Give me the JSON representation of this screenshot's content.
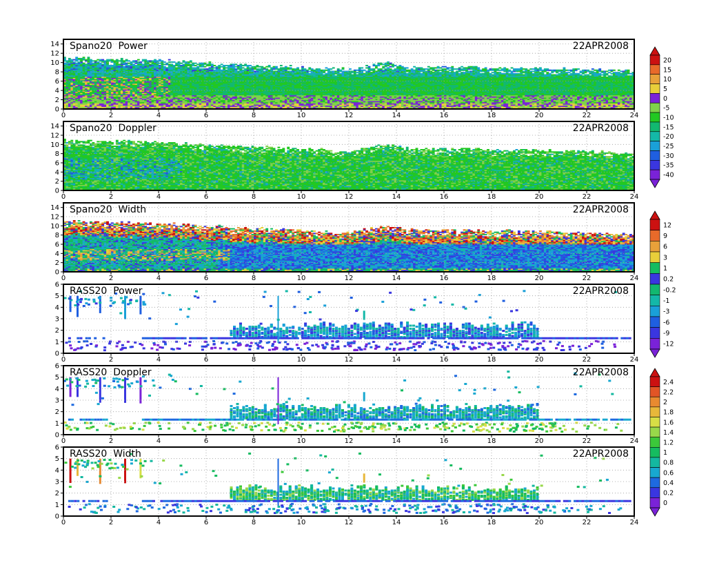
{
  "date_label": "22APR2008",
  "chart_data": [
    {
      "type": "heatmap",
      "title": "Spano20  Power",
      "date": "22APR2008",
      "xlim": [
        0,
        24
      ],
      "ylim": [
        0,
        15
      ],
      "x_ticks": [
        "0",
        "2",
        "4",
        "6",
        "8",
        "10",
        "12",
        "14",
        "16",
        "18",
        "20",
        "22",
        "24"
      ],
      "y_ticks": [
        "0",
        "2",
        "4",
        "6",
        "8",
        "10",
        "12",
        "14"
      ],
      "grid": true,
      "colorbar": {
        "levels": [
          "20",
          "15",
          "10",
          "5",
          "0",
          "-5",
          "-10",
          "-15",
          "-20",
          "-25",
          "-30",
          "-35",
          "-40"
        ]
      },
      "data_top_km_by_hour": [
        [
          0,
          11
        ],
        [
          4,
          10.5
        ],
        [
          8,
          9.5
        ],
        [
          12,
          8.6
        ],
        [
          13.6,
          10
        ],
        [
          14.5,
          9.2
        ],
        [
          20,
          8.8
        ],
        [
          24,
          8.2
        ]
      ]
    },
    {
      "type": "heatmap",
      "title": "Spano20  Doppler",
      "date": "22APR2008",
      "xlim": [
        0,
        24
      ],
      "ylim": [
        0,
        15
      ],
      "x_ticks": [
        "0",
        "2",
        "4",
        "6",
        "8",
        "10",
        "12",
        "14",
        "16",
        "18",
        "20",
        "22",
        "24"
      ],
      "y_ticks": [
        "0",
        "2",
        "4",
        "6",
        "8",
        "10",
        "12",
        "14"
      ],
      "grid": true,
      "colorbar": {
        "levels": [
          "20",
          "15",
          "10",
          "5",
          "0",
          "-5",
          "-10",
          "-15",
          "-20",
          "-25",
          "-30",
          "-35",
          "-40"
        ]
      },
      "data_top_km_by_hour": [
        [
          0,
          11
        ],
        [
          4,
          10.5
        ],
        [
          8,
          9.5
        ],
        [
          12,
          8.6
        ],
        [
          13.6,
          10
        ],
        [
          14.5,
          9.2
        ],
        [
          20,
          8.8
        ],
        [
          24,
          8.2
        ]
      ]
    },
    {
      "type": "heatmap",
      "title": "Spano20  Width",
      "date": "22APR2008",
      "xlim": [
        0,
        24
      ],
      "ylim": [
        0,
        15
      ],
      "x_ticks": [
        "0",
        "2",
        "4",
        "6",
        "8",
        "10",
        "12",
        "14",
        "16",
        "18",
        "20",
        "22",
        "24"
      ],
      "y_ticks": [
        "0",
        "2",
        "4",
        "6",
        "8",
        "10",
        "12",
        "14"
      ],
      "grid": true,
      "colorbar": {
        "levels": [
          "12",
          "9",
          "6",
          "3",
          "1",
          "0.2",
          "-0.2",
          "-1",
          "-3",
          "-6",
          "-9",
          "-12"
        ]
      },
      "data_top_km_by_hour": [
        [
          0,
          11
        ],
        [
          4,
          10.5
        ],
        [
          8,
          9.5
        ],
        [
          12,
          8.6
        ],
        [
          13.6,
          10
        ],
        [
          14.5,
          9.2
        ],
        [
          20,
          8.8
        ],
        [
          24,
          8.2
        ]
      ]
    },
    {
      "type": "scatter",
      "title": "RASS20  Power",
      "date": "22APR2008",
      "xlim": [
        0,
        24
      ],
      "ylim": [
        0,
        6
      ],
      "x_ticks": [
        "0",
        "2",
        "4",
        "6",
        "8",
        "10",
        "12",
        "14",
        "16",
        "18",
        "20",
        "22",
        "24"
      ],
      "y_ticks": [
        "0",
        "1",
        "2",
        "3",
        "4",
        "5",
        "6"
      ],
      "grid": true,
      "colorbar": {
        "levels": [
          "12",
          "9",
          "6",
          "3",
          "1",
          "0.2",
          "-0.2",
          "-1",
          "-3",
          "-6",
          "-9",
          "-12"
        ]
      },
      "features": {
        "band_km": [
          1.5,
          2.5
        ],
        "band_hours": [
          7,
          20
        ],
        "line_km": 1.4
      }
    },
    {
      "type": "scatter",
      "title": "RASS20  Doppler",
      "date": "22APR2008",
      "xlim": [
        0,
        24
      ],
      "ylim": [
        0,
        6
      ],
      "x_ticks": [
        "0",
        "2",
        "4",
        "6",
        "8",
        "10",
        "12",
        "14",
        "16",
        "18",
        "20",
        "22",
        "24"
      ],
      "y_ticks": [
        "0",
        "1",
        "2",
        "3",
        "4",
        "5",
        "6"
      ],
      "grid": true,
      "colorbar": {
        "levels": [
          "2.4",
          "2.2",
          "2",
          "1.8",
          "1.6",
          "1.4",
          "1.2",
          "1",
          "0.8",
          "0.6",
          "0.4",
          "0.2",
          "0"
        ]
      },
      "features": {
        "band_km": [
          1.5,
          2.5
        ],
        "band_hours": [
          7,
          20
        ],
        "line_km": 1.4
      }
    },
    {
      "type": "scatter",
      "title": "RASS20  Width",
      "date": "22APR2008",
      "xlim": [
        0,
        24
      ],
      "ylim": [
        0,
        6
      ],
      "x_ticks": [
        "0",
        "2",
        "4",
        "6",
        "8",
        "10",
        "12",
        "14",
        "16",
        "18",
        "20",
        "22",
        "24"
      ],
      "y_ticks": [
        "0",
        "1",
        "2",
        "3",
        "4",
        "5",
        "6"
      ],
      "grid": true,
      "colorbar": {
        "levels": [
          "2.4",
          "2.2",
          "2",
          "1.8",
          "1.6",
          "1.4",
          "1.2",
          "1",
          "0.8",
          "0.6",
          "0.4",
          "0.2",
          "0"
        ]
      },
      "features": {
        "band_km": [
          1.5,
          2.5
        ],
        "band_hours": [
          7,
          20
        ],
        "line_km": 1.4
      }
    }
  ]
}
